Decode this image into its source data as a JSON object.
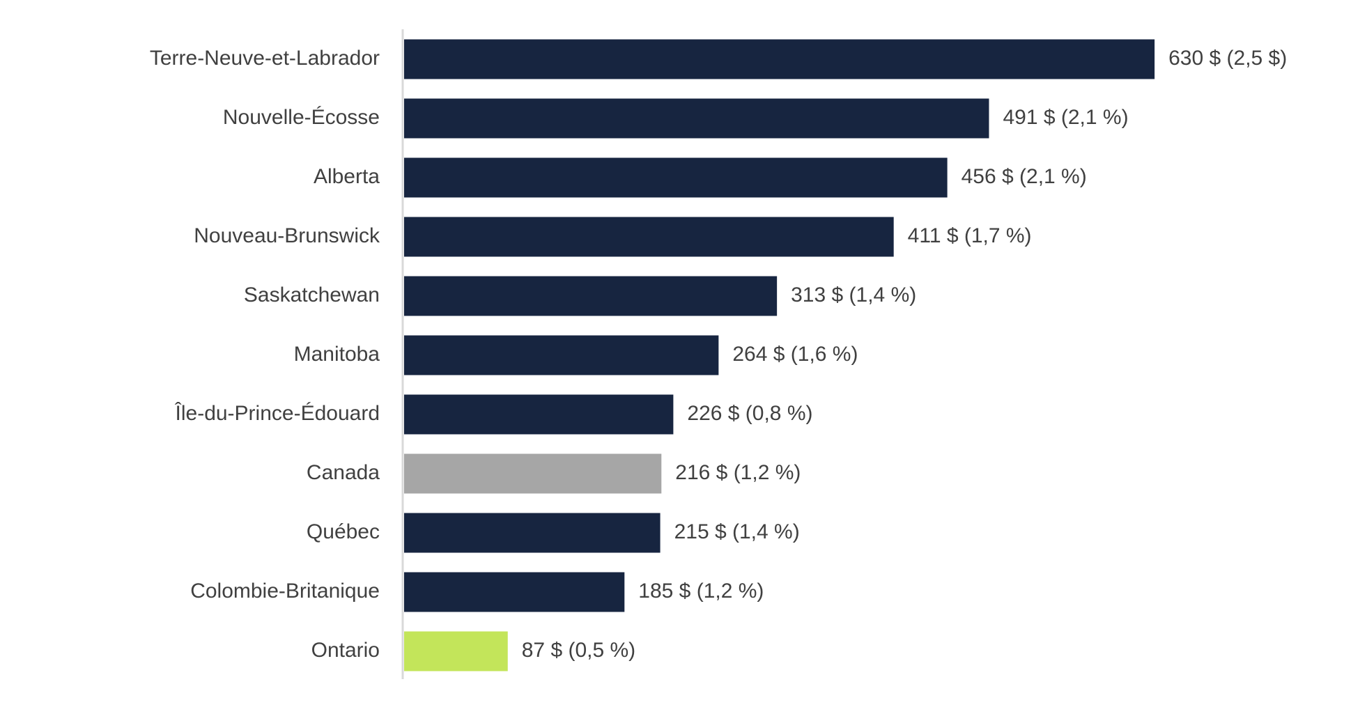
{
  "chart_data": {
    "type": "bar",
    "orientation": "horizontal",
    "title": "",
    "xlabel": "",
    "ylabel": "",
    "grid": false,
    "legend": "none",
    "categories": [
      "Terre-Neuve-et-Labrador",
      "Nouvelle-Écosse",
      "Alberta",
      "Nouveau-Brunswick",
      "Saskatchewan",
      "Manitoba",
      "Île-du-Prince-Édouard",
      "Canada",
      "Québec",
      "Colombie-Britanique",
      "Ontario"
    ],
    "values": [
      630,
      491,
      456,
      411,
      313,
      264,
      226,
      216,
      215,
      185,
      87
    ],
    "data_labels": [
      "630 $ (2,5 $)",
      "491 $ (2,1 %)",
      "456 $ (2,1 %)",
      "411 $ (1,7 %)",
      "313 $ (1,4 %)",
      "264 $ (1,6 %)",
      "226 $ (0,8 %)",
      "216 $ (1,2 %)",
      "215 $ (1,4 %)",
      "185 $ (1,2 %)",
      "87 $ (0,5 %)"
    ],
    "colors": [
      "#172540",
      "#172540",
      "#172540",
      "#172540",
      "#172540",
      "#172540",
      "#172540",
      "#a6a6a6",
      "#172540",
      "#172540",
      "#c3e55a"
    ],
    "xlim": [
      0,
      630
    ]
  }
}
